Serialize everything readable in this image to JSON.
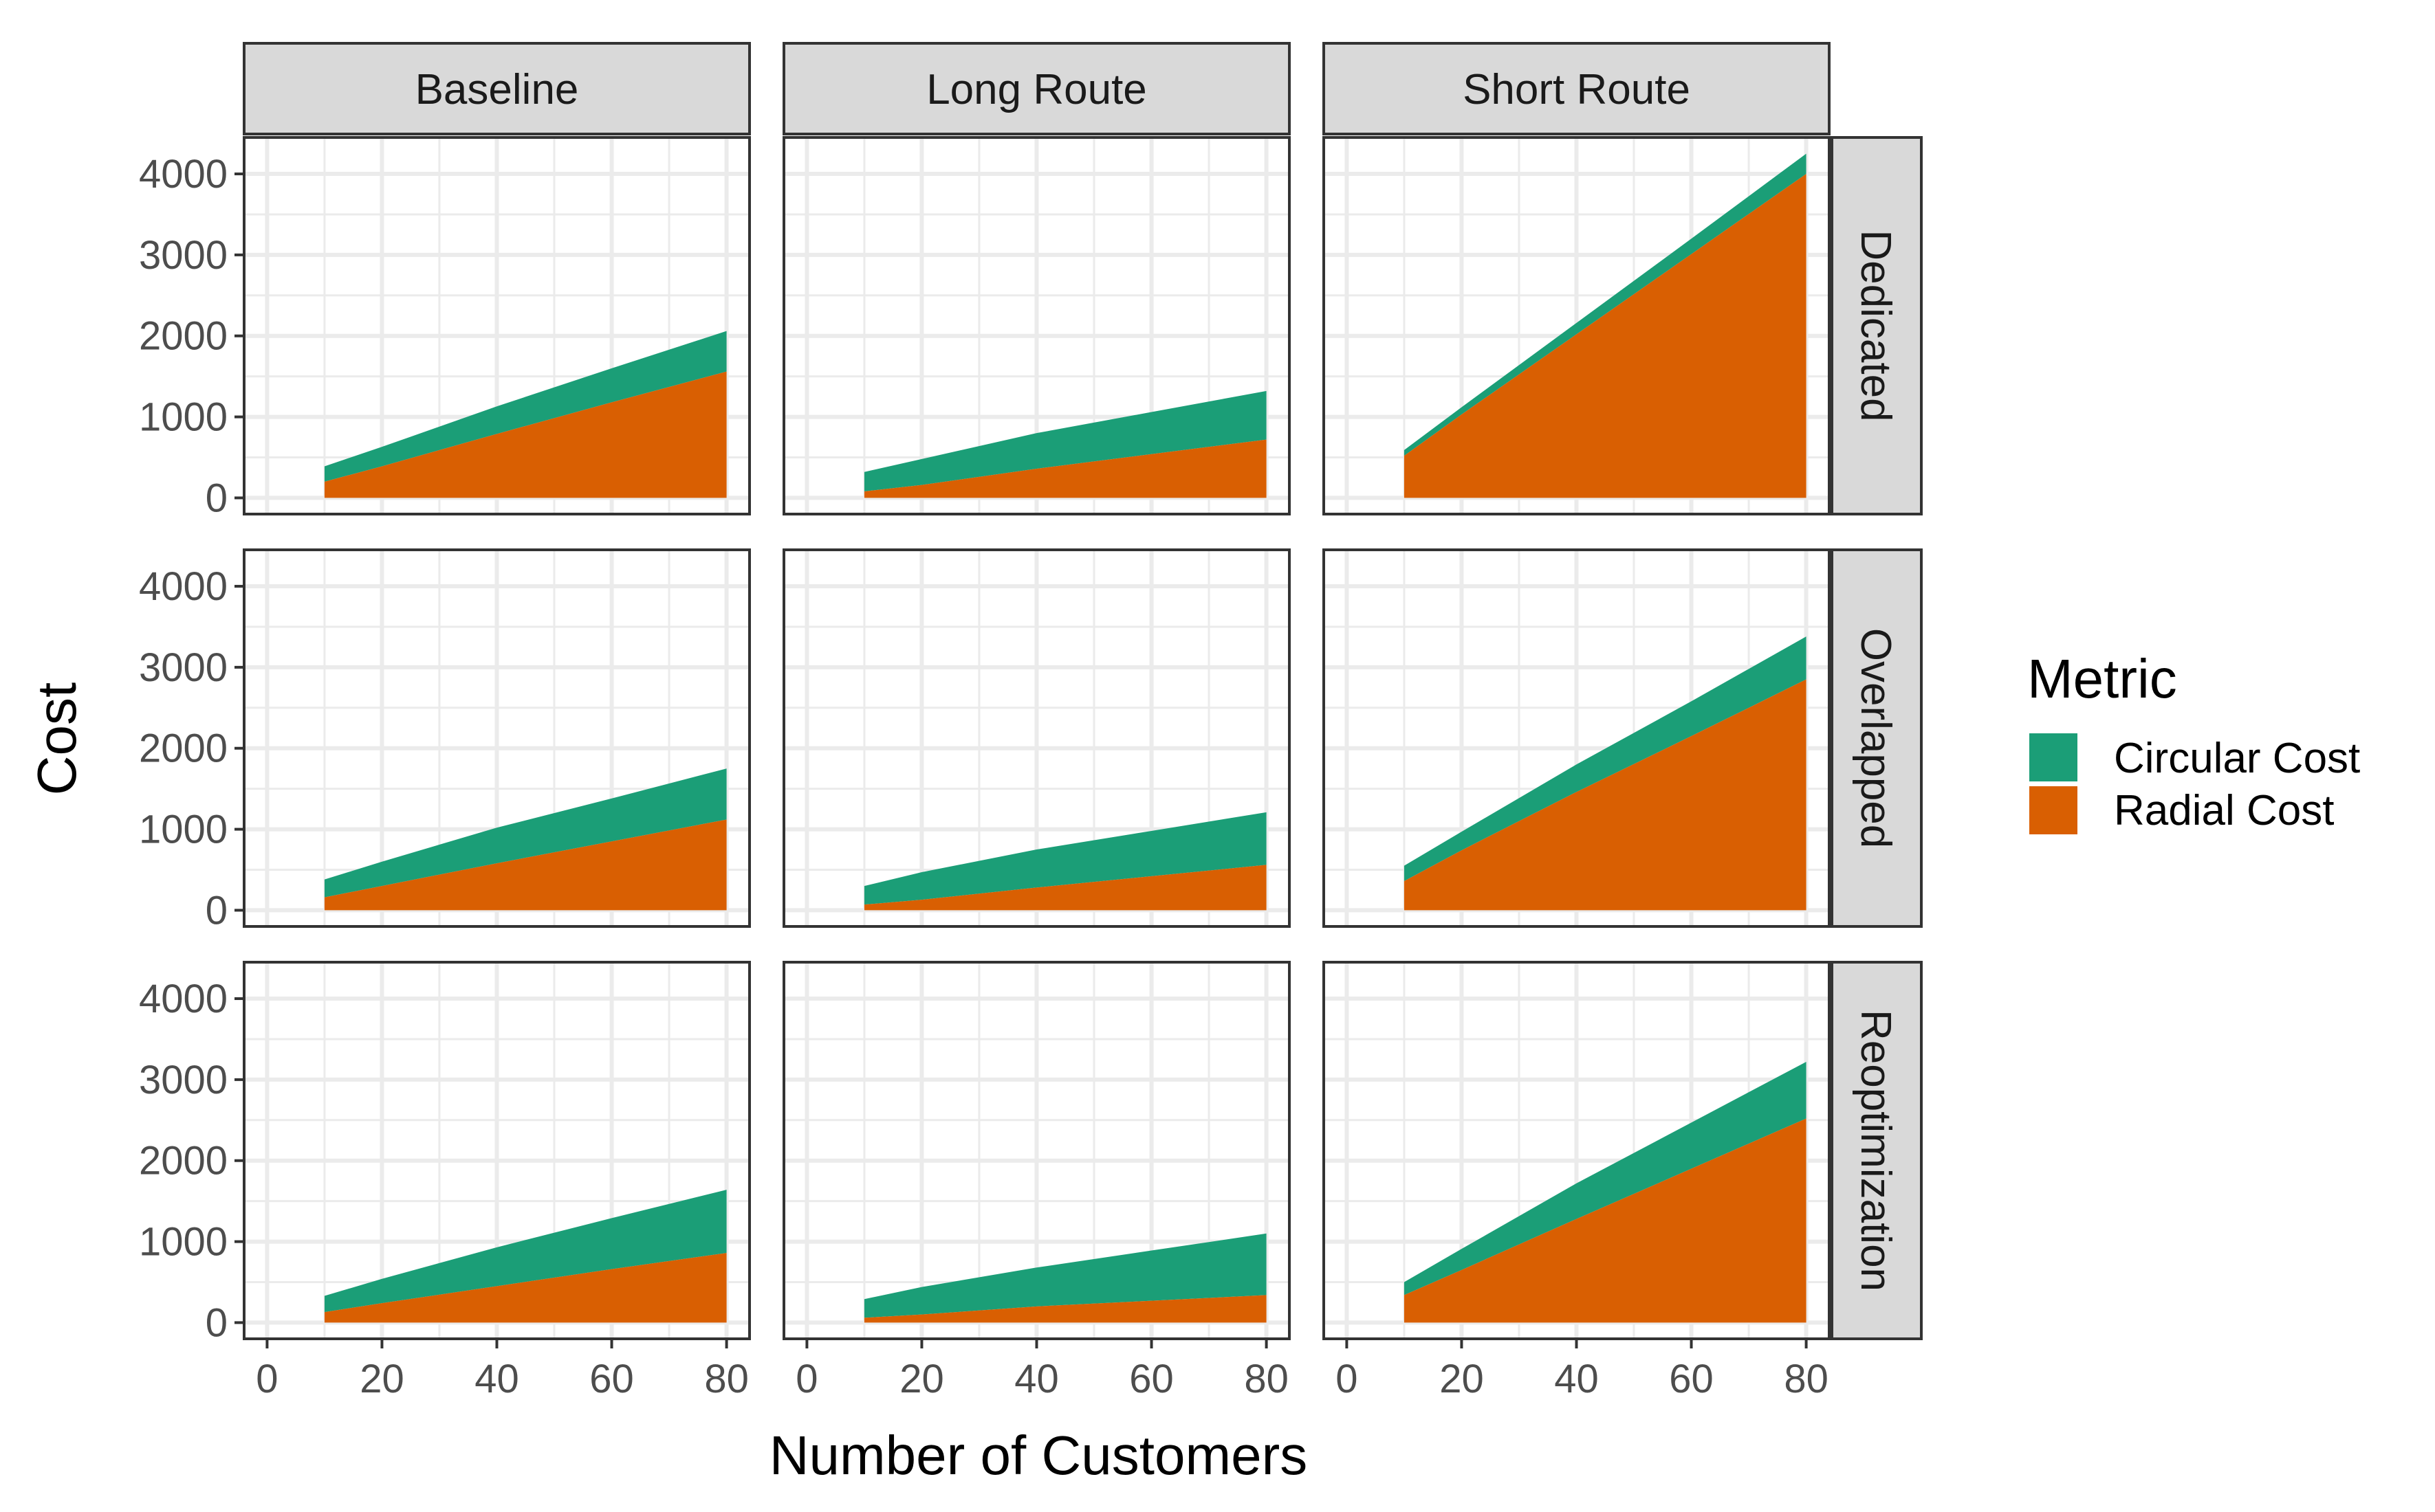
{
  "chart_data": {
    "type": "area",
    "stacked": true,
    "xlabel": "Number of Customers",
    "ylabel": "Cost",
    "xlim": [
      -4,
      84
    ],
    "ylim": [
      -200,
      4450
    ],
    "x_ticks": [
      0,
      20,
      40,
      60,
      80
    ],
    "y_ticks": [
      0,
      1000,
      2000,
      3000,
      4000
    ],
    "x_tick_labels": [
      "0",
      "20",
      "40",
      "60",
      "80"
    ],
    "y_tick_labels": [
      "0",
      "1000",
      "2000",
      "3000",
      "4000"
    ],
    "grid": true,
    "legend": {
      "title": "Metric",
      "position": "right",
      "entries": [
        {
          "name": "Circular Cost",
          "color": "#1b9e77"
        },
        {
          "name": "Radial Cost",
          "color": "#d95f02"
        }
      ]
    },
    "columns": [
      "Baseline",
      "Long Route",
      "Short Route"
    ],
    "rows": [
      "Dedicated",
      "Overlapped",
      "Reoptimization"
    ],
    "x": [
      10,
      20,
      40,
      60,
      80
    ],
    "panels": [
      {
        "column": "Baseline",
        "row": "Dedicated",
        "series": [
          {
            "name": "Radial Cost",
            "values": [
              200,
              390,
              790,
              1180,
              1560
            ]
          },
          {
            "name": "Circular Cost",
            "values": [
              190,
              240,
              340,
              420,
              500
            ]
          }
        ]
      },
      {
        "column": "Long Route",
        "row": "Dedicated",
        "series": [
          {
            "name": "Radial Cost",
            "values": [
              80,
              160,
              360,
              540,
              720
            ]
          },
          {
            "name": "Circular Cost",
            "values": [
              240,
              320,
              440,
              520,
              600
            ]
          }
        ]
      },
      {
        "column": "Short Route",
        "row": "Dedicated",
        "series": [
          {
            "name": "Radial Cost",
            "values": [
              520,
              1030,
              2020,
              3010,
              4000
            ]
          },
          {
            "name": "Circular Cost",
            "values": [
              70,
              90,
              140,
              190,
              250
            ]
          }
        ]
      },
      {
        "column": "Baseline",
        "row": "Overlapped",
        "series": [
          {
            "name": "Radial Cost",
            "values": [
              160,
              300,
              580,
              850,
              1120
            ]
          },
          {
            "name": "Circular Cost",
            "values": [
              220,
              300,
              440,
              530,
              630
            ]
          }
        ]
      },
      {
        "column": "Long Route",
        "row": "Overlapped",
        "series": [
          {
            "name": "Radial Cost",
            "values": [
              70,
              130,
              280,
              420,
              560
            ]
          },
          {
            "name": "Circular Cost",
            "values": [
              230,
              340,
              470,
              560,
              650
            ]
          }
        ]
      },
      {
        "column": "Short Route",
        "row": "Overlapped",
        "series": [
          {
            "name": "Radial Cost",
            "values": [
              360,
              740,
              1460,
              2150,
              2850
            ]
          },
          {
            "name": "Circular Cost",
            "values": [
              190,
              230,
              340,
              430,
              530
            ]
          }
        ]
      },
      {
        "column": "Baseline",
        "row": "Reoptimization",
        "series": [
          {
            "name": "Radial Cost",
            "values": [
              130,
              240,
              450,
              660,
              860
            ]
          },
          {
            "name": "Circular Cost",
            "values": [
              200,
              300,
              480,
              630,
              780
            ]
          }
        ]
      },
      {
        "column": "Long Route",
        "row": "Reoptimization",
        "series": [
          {
            "name": "Radial Cost",
            "values": [
              60,
              100,
              200,
              270,
              340
            ]
          },
          {
            "name": "Circular Cost",
            "values": [
              230,
              340,
              480,
              620,
              760
            ]
          }
        ]
      },
      {
        "column": "Short Route",
        "row": "Reoptimization",
        "series": [
          {
            "name": "Radial Cost",
            "values": [
              340,
              650,
              1280,
              1900,
              2520
            ]
          },
          {
            "name": "Circular Cost",
            "values": [
              160,
              260,
              440,
              570,
              700
            ]
          }
        ]
      }
    ]
  }
}
